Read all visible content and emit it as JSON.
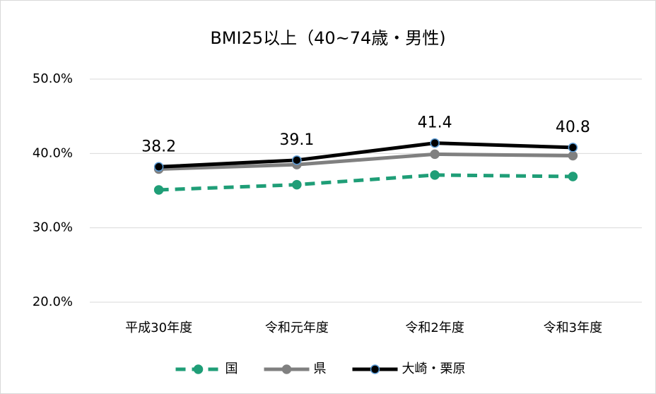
{
  "chart_data": {
    "type": "line",
    "title": "BMI25以上（40~74歳・男性)",
    "categories": [
      "平成30年度",
      "令和元年度",
      "令和2年度",
      "令和3年度"
    ],
    "series": [
      {
        "name": "国",
        "color": "#1f9e77",
        "dashed": true,
        "values": [
          35.1,
          35.8,
          37.1,
          36.9
        ]
      },
      {
        "name": "県",
        "color": "#808080",
        "values": [
          37.9,
          38.5,
          39.9,
          39.7
        ]
      },
      {
        "name": "大崎・栗原",
        "color": "#000000",
        "marker_edge": "#5b9bd5",
        "show_labels": true,
        "values": [
          38.2,
          39.1,
          41.4,
          40.8
        ]
      }
    ],
    "ylim": [
      20,
      50
    ],
    "yticks": [
      {
        "value": 20,
        "label": "20.0%"
      },
      {
        "value": 30,
        "label": "30.0%"
      },
      {
        "value": 40,
        "label": "40.0%"
      },
      {
        "value": 50,
        "label": "50.0%"
      }
    ],
    "grid": true,
    "legend": "bottom"
  }
}
